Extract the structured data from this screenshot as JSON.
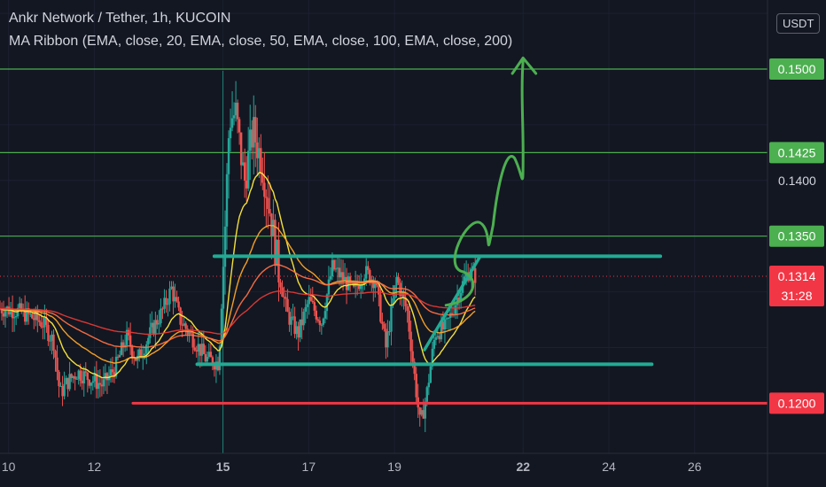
{
  "header": {
    "symbol_line": "Ankr Network / Tether, 1h, KUCOIN",
    "indicator_line": "MA Ribbon (EMA, close, 20, EMA, close, 50, EMA, close, 100, EMA, close, 200)",
    "currency": "USDT"
  },
  "chart_data": {
    "type": "candlestick",
    "x_axis": {
      "ticks": [
        {
          "label": "10",
          "day": 10,
          "bold": false
        },
        {
          "label": "12",
          "day": 12,
          "bold": false
        },
        {
          "label": "15",
          "day": 15,
          "bold": true
        },
        {
          "label": "17",
          "day": 17,
          "bold": false
        },
        {
          "label": "19",
          "day": 19,
          "bold": false
        },
        {
          "label": "22",
          "day": 22,
          "bold": true
        },
        {
          "label": "24",
          "day": 24,
          "bold": false
        },
        {
          "label": "26",
          "day": 26,
          "bold": false
        }
      ],
      "range": [
        9.8,
        27.7
      ]
    },
    "y_axis": {
      "range": [
        0.1155,
        0.1562
      ],
      "plain_ticks": [
        {
          "label": "0.1400",
          "value": 0.14
        }
      ]
    },
    "horizontal_levels": [
      {
        "label": "0.1500",
        "value": 0.15,
        "color": "#4caf50"
      },
      {
        "label": "0.1425",
        "value": 0.1425,
        "color": "#4caf50"
      },
      {
        "label": "0.1350",
        "value": 0.135,
        "color": "#4caf50"
      },
      {
        "label": "0.1200",
        "value": 0.12,
        "color": "#f23645"
      }
    ],
    "last_price": {
      "label": "0.1314",
      "value": 0.1314,
      "countdown": "31:28",
      "color": "#f23645"
    },
    "vertical_marker_day": 15,
    "drawings": {
      "resistance_line": {
        "value": 0.1332,
        "from_day": 14.8,
        "to_day": 25.2,
        "color": "#22ab94"
      },
      "support_line": {
        "value": 0.1235,
        "from_day": 14.4,
        "to_day": 25.0,
        "color": "#22ab94"
      },
      "support_red_line": {
        "value": 0.12,
        "from_day": 12.9,
        "to_day": 27.7,
        "color": "#f23645"
      },
      "rising_trendline": [
        [
          19.7,
          0.1248
        ],
        [
          21.0,
          0.1332
        ]
      ],
      "projection_path_color": "#4caf50"
    },
    "ema_ribbon": [
      {
        "name": "EMA 20",
        "color": "#ffeb3b"
      },
      {
        "name": "EMA 50",
        "color": "#ffa726"
      },
      {
        "name": "EMA 100",
        "color": "#ff7043"
      },
      {
        "name": "EMA 200",
        "color": "#e53935"
      }
    ],
    "price_path": [
      [
        9.8,
        0.1285
      ],
      [
        10.2,
        0.1283
      ],
      [
        10.5,
        0.1278
      ],
      [
        10.8,
        0.1272
      ],
      [
        11.05,
        0.1255
      ],
      [
        11.2,
        0.1208
      ],
      [
        11.35,
        0.1218
      ],
      [
        11.6,
        0.1228
      ],
      [
        11.9,
        0.1222
      ],
      [
        12.2,
        0.1216
      ],
      [
        12.5,
        0.1233
      ],
      [
        12.75,
        0.126
      ],
      [
        13.0,
        0.1238
      ],
      [
        13.3,
        0.1262
      ],
      [
        13.6,
        0.1284
      ],
      [
        13.8,
        0.1303
      ],
      [
        14.0,
        0.1275
      ],
      [
        14.3,
        0.1258
      ],
      [
        14.6,
        0.124
      ],
      [
        14.9,
        0.1236
      ],
      [
        15.05,
        0.136
      ],
      [
        15.15,
        0.1455
      ],
      [
        15.3,
        0.146
      ],
      [
        15.5,
        0.1398
      ],
      [
        15.7,
        0.1445
      ],
      [
        15.9,
        0.1418
      ],
      [
        16.1,
        0.1372
      ],
      [
        16.3,
        0.1318
      ],
      [
        16.5,
        0.128
      ],
      [
        16.75,
        0.1262
      ],
      [
        17.0,
        0.1292
      ],
      [
        17.3,
        0.1273
      ],
      [
        17.55,
        0.1322
      ],
      [
        17.8,
        0.1312
      ],
      [
        18.05,
        0.13
      ],
      [
        18.3,
        0.1318
      ],
      [
        18.55,
        0.131
      ],
      [
        18.8,
        0.125
      ],
      [
        19.05,
        0.1312
      ],
      [
        19.3,
        0.1282
      ],
      [
        19.45,
        0.123
      ],
      [
        19.6,
        0.118
      ],
      [
        19.75,
        0.1208
      ],
      [
        19.95,
        0.1263
      ],
      [
        20.2,
        0.1268
      ],
      [
        20.45,
        0.1293
      ],
      [
        20.7,
        0.1318
      ],
      [
        20.9,
        0.1314
      ]
    ]
  }
}
